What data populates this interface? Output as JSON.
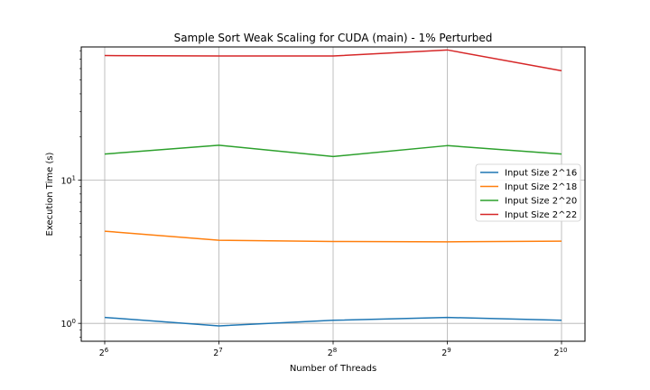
{
  "chart_data": {
    "type": "line",
    "title": "Sample Sort Weak Scaling for CUDA (main) - 1% Perturbed",
    "xlabel": "Number of Threads",
    "ylabel": "Execution Time (s)",
    "x_scale": "log2",
    "y_scale": "log10",
    "x_ticks": [
      {
        "value": 64,
        "base": "2",
        "exp": "6"
      },
      {
        "value": 128,
        "base": "2",
        "exp": "7"
      },
      {
        "value": 256,
        "base": "2",
        "exp": "8"
      },
      {
        "value": 512,
        "base": "2",
        "exp": "9"
      },
      {
        "value": 1024,
        "base": "2",
        "exp": "10"
      }
    ],
    "y_ticks": [
      {
        "value": 1,
        "base": "10",
        "exp": "0"
      },
      {
        "value": 10,
        "base": "10",
        "exp": "1"
      }
    ],
    "x": [
      64,
      128,
      256,
      512,
      1024
    ],
    "ylim": [
      0.75,
      85
    ],
    "grid": true,
    "legend_position": "center-right",
    "series": [
      {
        "name": "Input Size 2^16",
        "color": "#1f77b4",
        "values": [
          1.1,
          0.96,
          1.05,
          1.1,
          1.05
        ]
      },
      {
        "name": "Input Size 2^18",
        "color": "#ff7f0e",
        "values": [
          4.4,
          3.8,
          3.73,
          3.71,
          3.75
        ]
      },
      {
        "name": "Input Size 2^20",
        "color": "#2ca02c",
        "values": [
          15.2,
          17.5,
          14.6,
          17.4,
          15.2
        ]
      },
      {
        "name": "Input Size 2^22",
        "color": "#d62728",
        "values": [
          74,
          73.5,
          73.5,
          81,
          58
        ]
      }
    ]
  }
}
